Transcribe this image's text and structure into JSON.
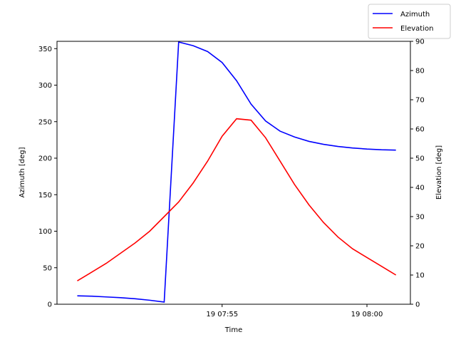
{
  "chart_data": {
    "type": "line",
    "xlabel": "Time",
    "ylabel_left": "Azimuth [deg]",
    "ylabel_right": "Elevation [deg]",
    "x_unit": "minutes after 07:50",
    "x_range": [
      -0.7,
      11.5
    ],
    "x_ticks": [
      {
        "value": 5,
        "label": "19 07:55"
      },
      {
        "value": 10,
        "label": "19 08:00"
      }
    ],
    "y_left": {
      "range": [
        0,
        360
      ],
      "ticks": [
        0,
        50,
        100,
        150,
        200,
        250,
        300,
        350
      ]
    },
    "y_right": {
      "range": [
        0,
        90
      ],
      "ticks": [
        0,
        10,
        20,
        30,
        40,
        50,
        60,
        70,
        80,
        90
      ]
    },
    "grid": false,
    "legend_position": "top-right",
    "series": [
      {
        "name": "Azimuth",
        "color": "#0000ff",
        "axis": "left",
        "x": [
          0,
          0.5,
          1,
          1.5,
          2,
          2.5,
          3,
          3.5,
          4,
          4.5,
          5,
          5.5,
          6,
          6.5,
          7,
          7.5,
          8,
          8.5,
          9,
          9.5,
          10,
          10.5,
          11
        ],
        "y": [
          11.5,
          11,
          10,
          9,
          7.5,
          5.5,
          3,
          359,
          354,
          346,
          331,
          306,
          274,
          251,
          237,
          229,
          223,
          219,
          216,
          214,
          212.5,
          211.5,
          211
        ]
      },
      {
        "name": "Elevation",
        "color": "#ff0000",
        "axis": "right",
        "x": [
          0,
          0.5,
          1,
          1.5,
          2,
          2.5,
          3,
          3.5,
          4,
          4.5,
          5,
          5.5,
          6,
          6.5,
          7,
          7.5,
          8,
          8.5,
          9,
          9.5,
          10,
          10.5,
          11
        ],
        "y": [
          8,
          11,
          14,
          17.5,
          21,
          25,
          30,
          35,
          41.5,
          49,
          57.5,
          63.5,
          63,
          57,
          49,
          41,
          34,
          28,
          23,
          19,
          16,
          13,
          10
        ]
      }
    ]
  }
}
